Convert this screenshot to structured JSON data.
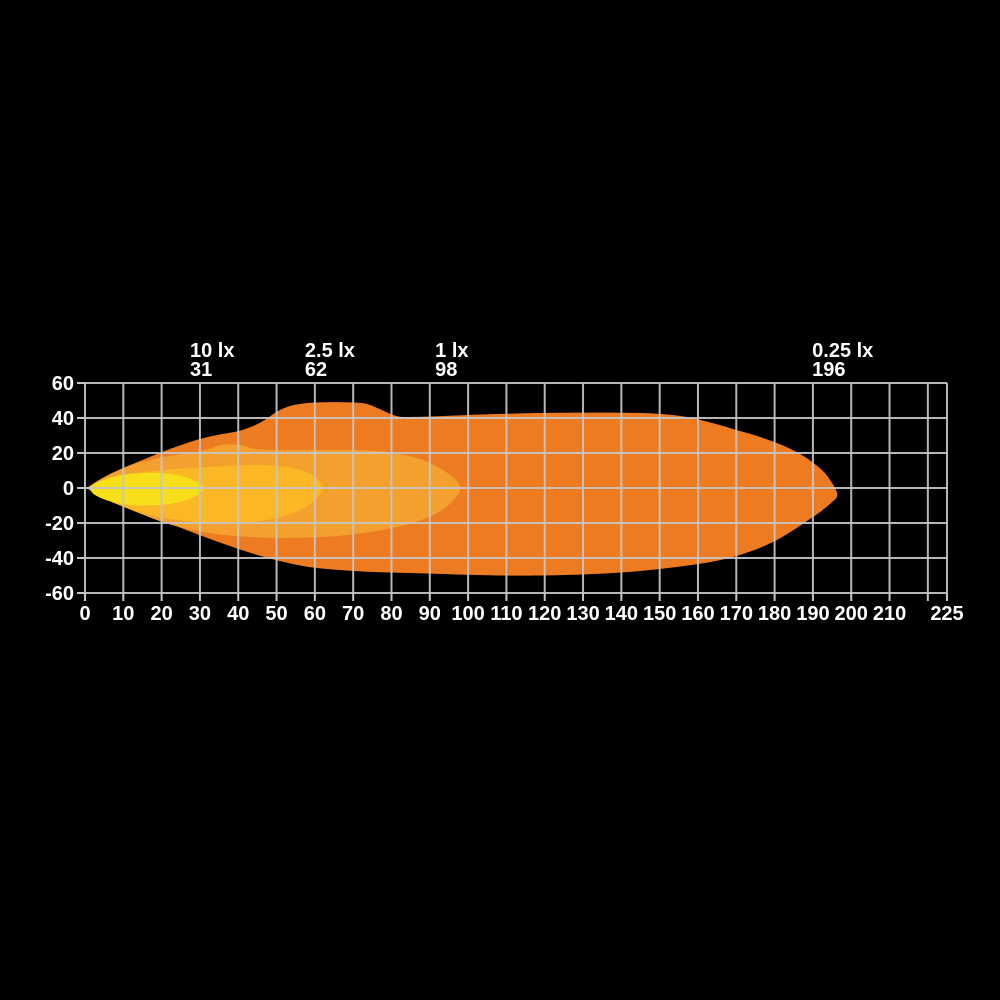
{
  "background_color": "#000000",
  "text_color": "#ffffff",
  "grid_color": "#c6c6c6",
  "chart_data": {
    "type": "area",
    "subtype": "isolux-headlight-beam-pattern",
    "grid": true,
    "legend_position": "top",
    "x_axis": {
      "range": [
        0,
        225
      ],
      "tick_values": [
        0,
        10,
        20,
        30,
        40,
        50,
        60,
        70,
        80,
        90,
        100,
        110,
        120,
        130,
        140,
        150,
        160,
        170,
        180,
        190,
        200,
        210,
        225
      ],
      "tick_labels": [
        "0",
        "10",
        "20",
        "30",
        "40",
        "50",
        "60",
        "70",
        "80",
        "90",
        "100",
        "110",
        "120",
        "130",
        "140",
        "150",
        "160",
        "170",
        "180",
        "190",
        "200",
        "210",
        "225"
      ],
      "grid_values": [
        0,
        10,
        20,
        30,
        40,
        50,
        60,
        70,
        80,
        90,
        100,
        110,
        120,
        130,
        140,
        150,
        160,
        170,
        180,
        190,
        200,
        210,
        220,
        225
      ]
    },
    "y_axis": {
      "range": [
        -60,
        60
      ],
      "tick_values": [
        60,
        40,
        20,
        0,
        -20,
        -40,
        -60
      ],
      "tick_labels": [
        "60",
        "40",
        "20",
        "0",
        "-20",
        "-40",
        "-60"
      ],
      "grid_values": [
        60,
        40,
        20,
        0,
        -20,
        -40,
        -60
      ]
    },
    "lux_labels": [
      {
        "lux": "10 lx",
        "distance": "31",
        "x": 27.4
      },
      {
        "lux": "2.5 lx",
        "distance": "62",
        "x": 57.4
      },
      {
        "lux": "1 lx",
        "distance": "98",
        "x": 91.4
      },
      {
        "lux": "0.25 lx",
        "distance": "196",
        "x": 189.8
      }
    ],
    "contours": [
      {
        "name": "0.25 lx",
        "reach": 196,
        "color": "#EC7B22",
        "points": [
          [
            0.5,
            0
          ],
          [
            3,
            3.5
          ],
          [
            6,
            7
          ],
          [
            10,
            11.5
          ],
          [
            15,
            16
          ],
          [
            20,
            20.5
          ],
          [
            25,
            24.5
          ],
          [
            30,
            28
          ],
          [
            35,
            30.5
          ],
          [
            40,
            32.5
          ],
          [
            44,
            35.5
          ],
          [
            47,
            39
          ],
          [
            50,
            43.5
          ],
          [
            53,
            46.5
          ],
          [
            57,
            48.3
          ],
          [
            62,
            49
          ],
          [
            68,
            49
          ],
          [
            73,
            48.3
          ],
          [
            76,
            46
          ],
          [
            79,
            43
          ],
          [
            82,
            40.8
          ],
          [
            86,
            40.6
          ],
          [
            92,
            41
          ],
          [
            100,
            41.7
          ],
          [
            110,
            42.4
          ],
          [
            120,
            42.9
          ],
          [
            132,
            43.1
          ],
          [
            144,
            42.9
          ],
          [
            152,
            42
          ],
          [
            158,
            40.2
          ],
          [
            164,
            37
          ],
          [
            169,
            33.8
          ],
          [
            174,
            30.7
          ],
          [
            179,
            27
          ],
          [
            183,
            23.5
          ],
          [
            187,
            19
          ],
          [
            190,
            14.5
          ],
          [
            192.5,
            10
          ],
          [
            194.5,
            4.5
          ],
          [
            196,
            -1
          ],
          [
            196.3,
            -5
          ],
          [
            194.5,
            -9
          ],
          [
            192,
            -13.5
          ],
          [
            189,
            -18
          ],
          [
            186,
            -22.5
          ],
          [
            182,
            -28
          ],
          [
            178,
            -32.5
          ],
          [
            174,
            -36
          ],
          [
            169,
            -39.5
          ],
          [
            164,
            -42
          ],
          [
            159,
            -43.8
          ],
          [
            153,
            -45.5
          ],
          [
            146,
            -47.2
          ],
          [
            138,
            -48.6
          ],
          [
            129,
            -49.5
          ],
          [
            119,
            -50
          ],
          [
            108,
            -50
          ],
          [
            97,
            -49.4
          ],
          [
            88,
            -48.8
          ],
          [
            80,
            -48.3
          ],
          [
            73,
            -47.8
          ],
          [
            66,
            -46.8
          ],
          [
            60,
            -45.6
          ],
          [
            55,
            -43.8
          ],
          [
            50,
            -41.3
          ],
          [
            45,
            -38.3
          ],
          [
            40,
            -34.8
          ],
          [
            35,
            -31
          ],
          [
            30,
            -27
          ],
          [
            25,
            -22.8
          ],
          [
            20,
            -18.6
          ],
          [
            15,
            -14.2
          ],
          [
            10,
            -9.6
          ],
          [
            6,
            -6
          ],
          [
            3,
            -3.2
          ]
        ]
      },
      {
        "name": "1 lx",
        "reach": 98,
        "color": "#F3A02E",
        "points": [
          [
            0.5,
            0
          ],
          [
            4,
            5
          ],
          [
            8,
            9.5
          ],
          [
            12,
            13
          ],
          [
            16,
            15.5
          ],
          [
            20,
            17.5
          ],
          [
            24,
            19
          ],
          [
            28,
            20
          ],
          [
            32,
            22
          ],
          [
            35,
            24.3
          ],
          [
            38,
            25
          ],
          [
            41,
            24.3
          ],
          [
            44,
            22.5
          ],
          [
            48,
            21.8
          ],
          [
            54,
            21.8
          ],
          [
            60,
            21.8
          ],
          [
            66,
            21.8
          ],
          [
            72,
            21.6
          ],
          [
            77,
            21
          ],
          [
            81,
            19.8
          ],
          [
            85,
            18
          ],
          [
            89,
            15.3
          ],
          [
            92,
            12
          ],
          [
            95,
            8
          ],
          [
            97,
            4
          ],
          [
            98,
            -0.5
          ],
          [
            97,
            -5
          ],
          [
            95,
            -9.5
          ],
          [
            92.5,
            -13.5
          ],
          [
            89,
            -17.3
          ],
          [
            85,
            -20.3
          ],
          [
            80,
            -23
          ],
          [
            74,
            -25.3
          ],
          [
            68,
            -27
          ],
          [
            61,
            -28.1
          ],
          [
            54,
            -28.5
          ],
          [
            47,
            -28.4
          ],
          [
            41,
            -27.7
          ],
          [
            35,
            -26.5
          ],
          [
            30,
            -24.8
          ],
          [
            25,
            -22.5
          ],
          [
            20,
            -19.3
          ],
          [
            16,
            -16
          ],
          [
            12,
            -12.5
          ],
          [
            8,
            -8.7
          ],
          [
            4,
            -4.6
          ]
        ]
      },
      {
        "name": "2.5 lx",
        "reach": 62,
        "color": "#FBB724",
        "points": [
          [
            0.5,
            0
          ],
          [
            3,
            3
          ],
          [
            6,
            5.5
          ],
          [
            9,
            7.2
          ],
          [
            12,
            8.3
          ],
          [
            16,
            9.3
          ],
          [
            20,
            10.2
          ],
          [
            24,
            10.9
          ],
          [
            28,
            11.5
          ],
          [
            32,
            12
          ],
          [
            36,
            12.5
          ],
          [
            40,
            13
          ],
          [
            44,
            13.2
          ],
          [
            48,
            13
          ],
          [
            51,
            12.5
          ],
          [
            54,
            11.6
          ],
          [
            56.5,
            10.2
          ],
          [
            58.5,
            8.4
          ],
          [
            60.2,
            6
          ],
          [
            61.4,
            3.3
          ],
          [
            62,
            0
          ],
          [
            61.4,
            -3.4
          ],
          [
            60,
            -7
          ],
          [
            58,
            -10.4
          ],
          [
            55.5,
            -13.3
          ],
          [
            52.5,
            -15.8
          ],
          [
            49,
            -17.7
          ],
          [
            45,
            -19.1
          ],
          [
            41,
            -19.9
          ],
          [
            37,
            -20.2
          ],
          [
            33,
            -20
          ],
          [
            29,
            -19.4
          ],
          [
            25,
            -18.5
          ],
          [
            21,
            -17.2
          ],
          [
            17,
            -15.4
          ],
          [
            13,
            -13
          ],
          [
            9.5,
            -10.3
          ],
          [
            6.5,
            -7.6
          ],
          [
            3.5,
            -4.5
          ]
        ]
      },
      {
        "name": "10 lx",
        "reach": 31,
        "color": "#F7E01A",
        "points": [
          [
            1,
            0
          ],
          [
            2.5,
            2.2
          ],
          [
            4.5,
            4.4
          ],
          [
            7,
            6.2
          ],
          [
            9.5,
            7.4
          ],
          [
            12,
            8.1
          ],
          [
            15,
            8.5
          ],
          [
            18,
            8.6
          ],
          [
            21,
            8.3
          ],
          [
            24,
            7.4
          ],
          [
            26.5,
            6.1
          ],
          [
            28.5,
            4.3
          ],
          [
            30,
            2.3
          ],
          [
            30.8,
            0.2
          ],
          [
            30.3,
            -2.2
          ],
          [
            29,
            -4.5
          ],
          [
            27,
            -6.5
          ],
          [
            24.5,
            -8.1
          ],
          [
            21.5,
            -9.3
          ],
          [
            18,
            -9.9
          ],
          [
            14.5,
            -10
          ],
          [
            11,
            -9.5
          ],
          [
            8,
            -8.4
          ],
          [
            5.5,
            -6.9
          ],
          [
            3.5,
            -5.1
          ],
          [
            2,
            -3.1
          ]
        ]
      }
    ]
  }
}
